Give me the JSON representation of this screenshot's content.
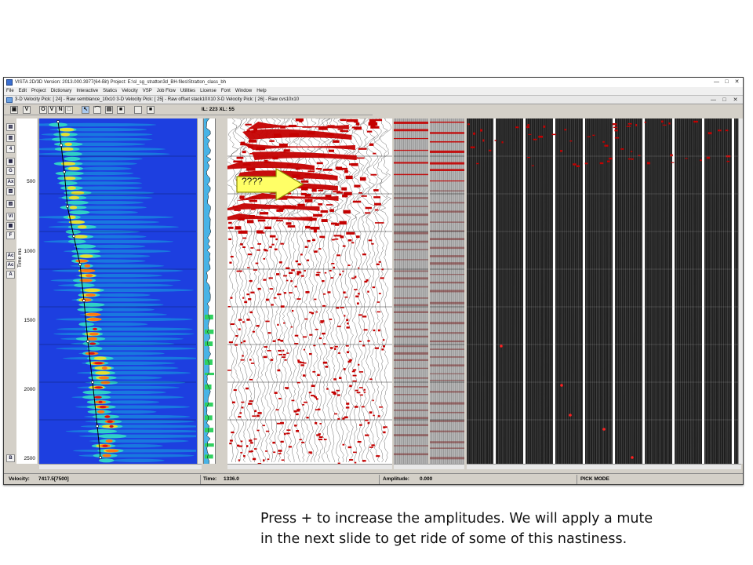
{
  "window": {
    "title": "VISTA 2D/3D Version: 2013.000.3977(64-Bit) Project: E:\\sl_sg_stratton3d_BH-files\\Stratton_class_bh",
    "controls": [
      "—",
      "□",
      "✕"
    ]
  },
  "menu": [
    "File",
    "Edit",
    "Project",
    "Dictionary",
    "Interactive",
    "Statics",
    "Velocity",
    "VSP",
    "Job Flow",
    "Utilities",
    "License",
    "Font",
    "Window",
    "Help"
  ],
  "tab": {
    "title": "3-D Velocity Pick: [ 24] - Raw semblance_10x10 3-D Velocity Pick: [ 25] - Raw offset stack10X10 3-D Velocity Pick: [ 26] - Raw cvs10x10",
    "controls": [
      "—",
      "□",
      "✕"
    ]
  },
  "toolbar": {
    "buttons": [
      "▣",
      "V",
      "O",
      "V",
      "N",
      "□",
      "↖",
      "⌒",
      "▤",
      "■",
      "",
      "■"
    ],
    "il_xl": "IL: 223  XL: 55"
  },
  "left_tools": [
    "▤",
    "▥",
    "4",
    "▦",
    "G",
    "Ax",
    "▧",
    "▨",
    "VI",
    "▩",
    "F",
    "Ac",
    "Ac",
    "A",
    "B"
  ],
  "time_axis": {
    "label": "Time ms",
    "ticks": [
      "500",
      "1000",
      "1500",
      "2000",
      "2500"
    ]
  },
  "status": {
    "velocity_label": "Velocity:",
    "velocity_value": "7417.5[7500]",
    "time_label": "Time:",
    "time_value": "1336.0",
    "amplitude_label": "Amplitude:",
    "amplitude_value": "0.000",
    "mode": "PICK MODE"
  },
  "callout": {
    "text": "????",
    "color": "#ffff66"
  },
  "caption": {
    "line1": "Press + to increase the amplitudes. We will apply a mute",
    "line2": "in the next slide to get ride of some of this nastiness."
  },
  "colors": {
    "semblance_bg": "#1d3fe0",
    "wiggle_fill": "#c40000",
    "pick_line": "#000000"
  }
}
